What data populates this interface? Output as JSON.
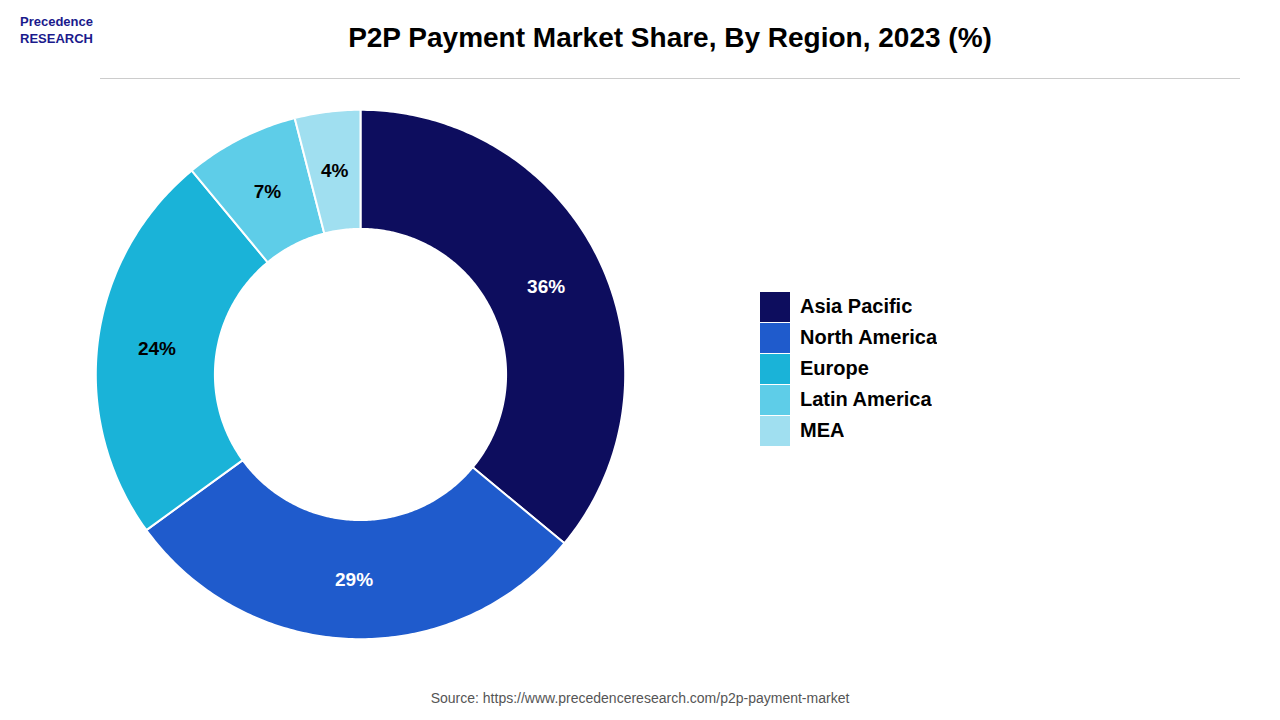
{
  "chart_data": {
    "type": "donut",
    "title": "P2P Payment Market Share, By Region, 2023 (%)",
    "categories": [
      "Asia Pacific",
      "North America",
      "Europe",
      "Latin America",
      "MEA"
    ],
    "values": [
      36,
      29,
      24,
      7,
      4
    ],
    "value_labels": [
      "36%",
      "29%",
      "24%",
      "7%",
      "4%"
    ],
    "colors": [
      "#0d0d5e",
      "#1f5bcc",
      "#1ab3d8",
      "#5ecde8",
      "#a0dff0"
    ],
    "data_labels": true,
    "legend": "right",
    "source": "Source: https://www.precedenceresearch.com/p2p-payment-market",
    "annotations": [
      "Precedence\nRESEARCH"
    ]
  }
}
